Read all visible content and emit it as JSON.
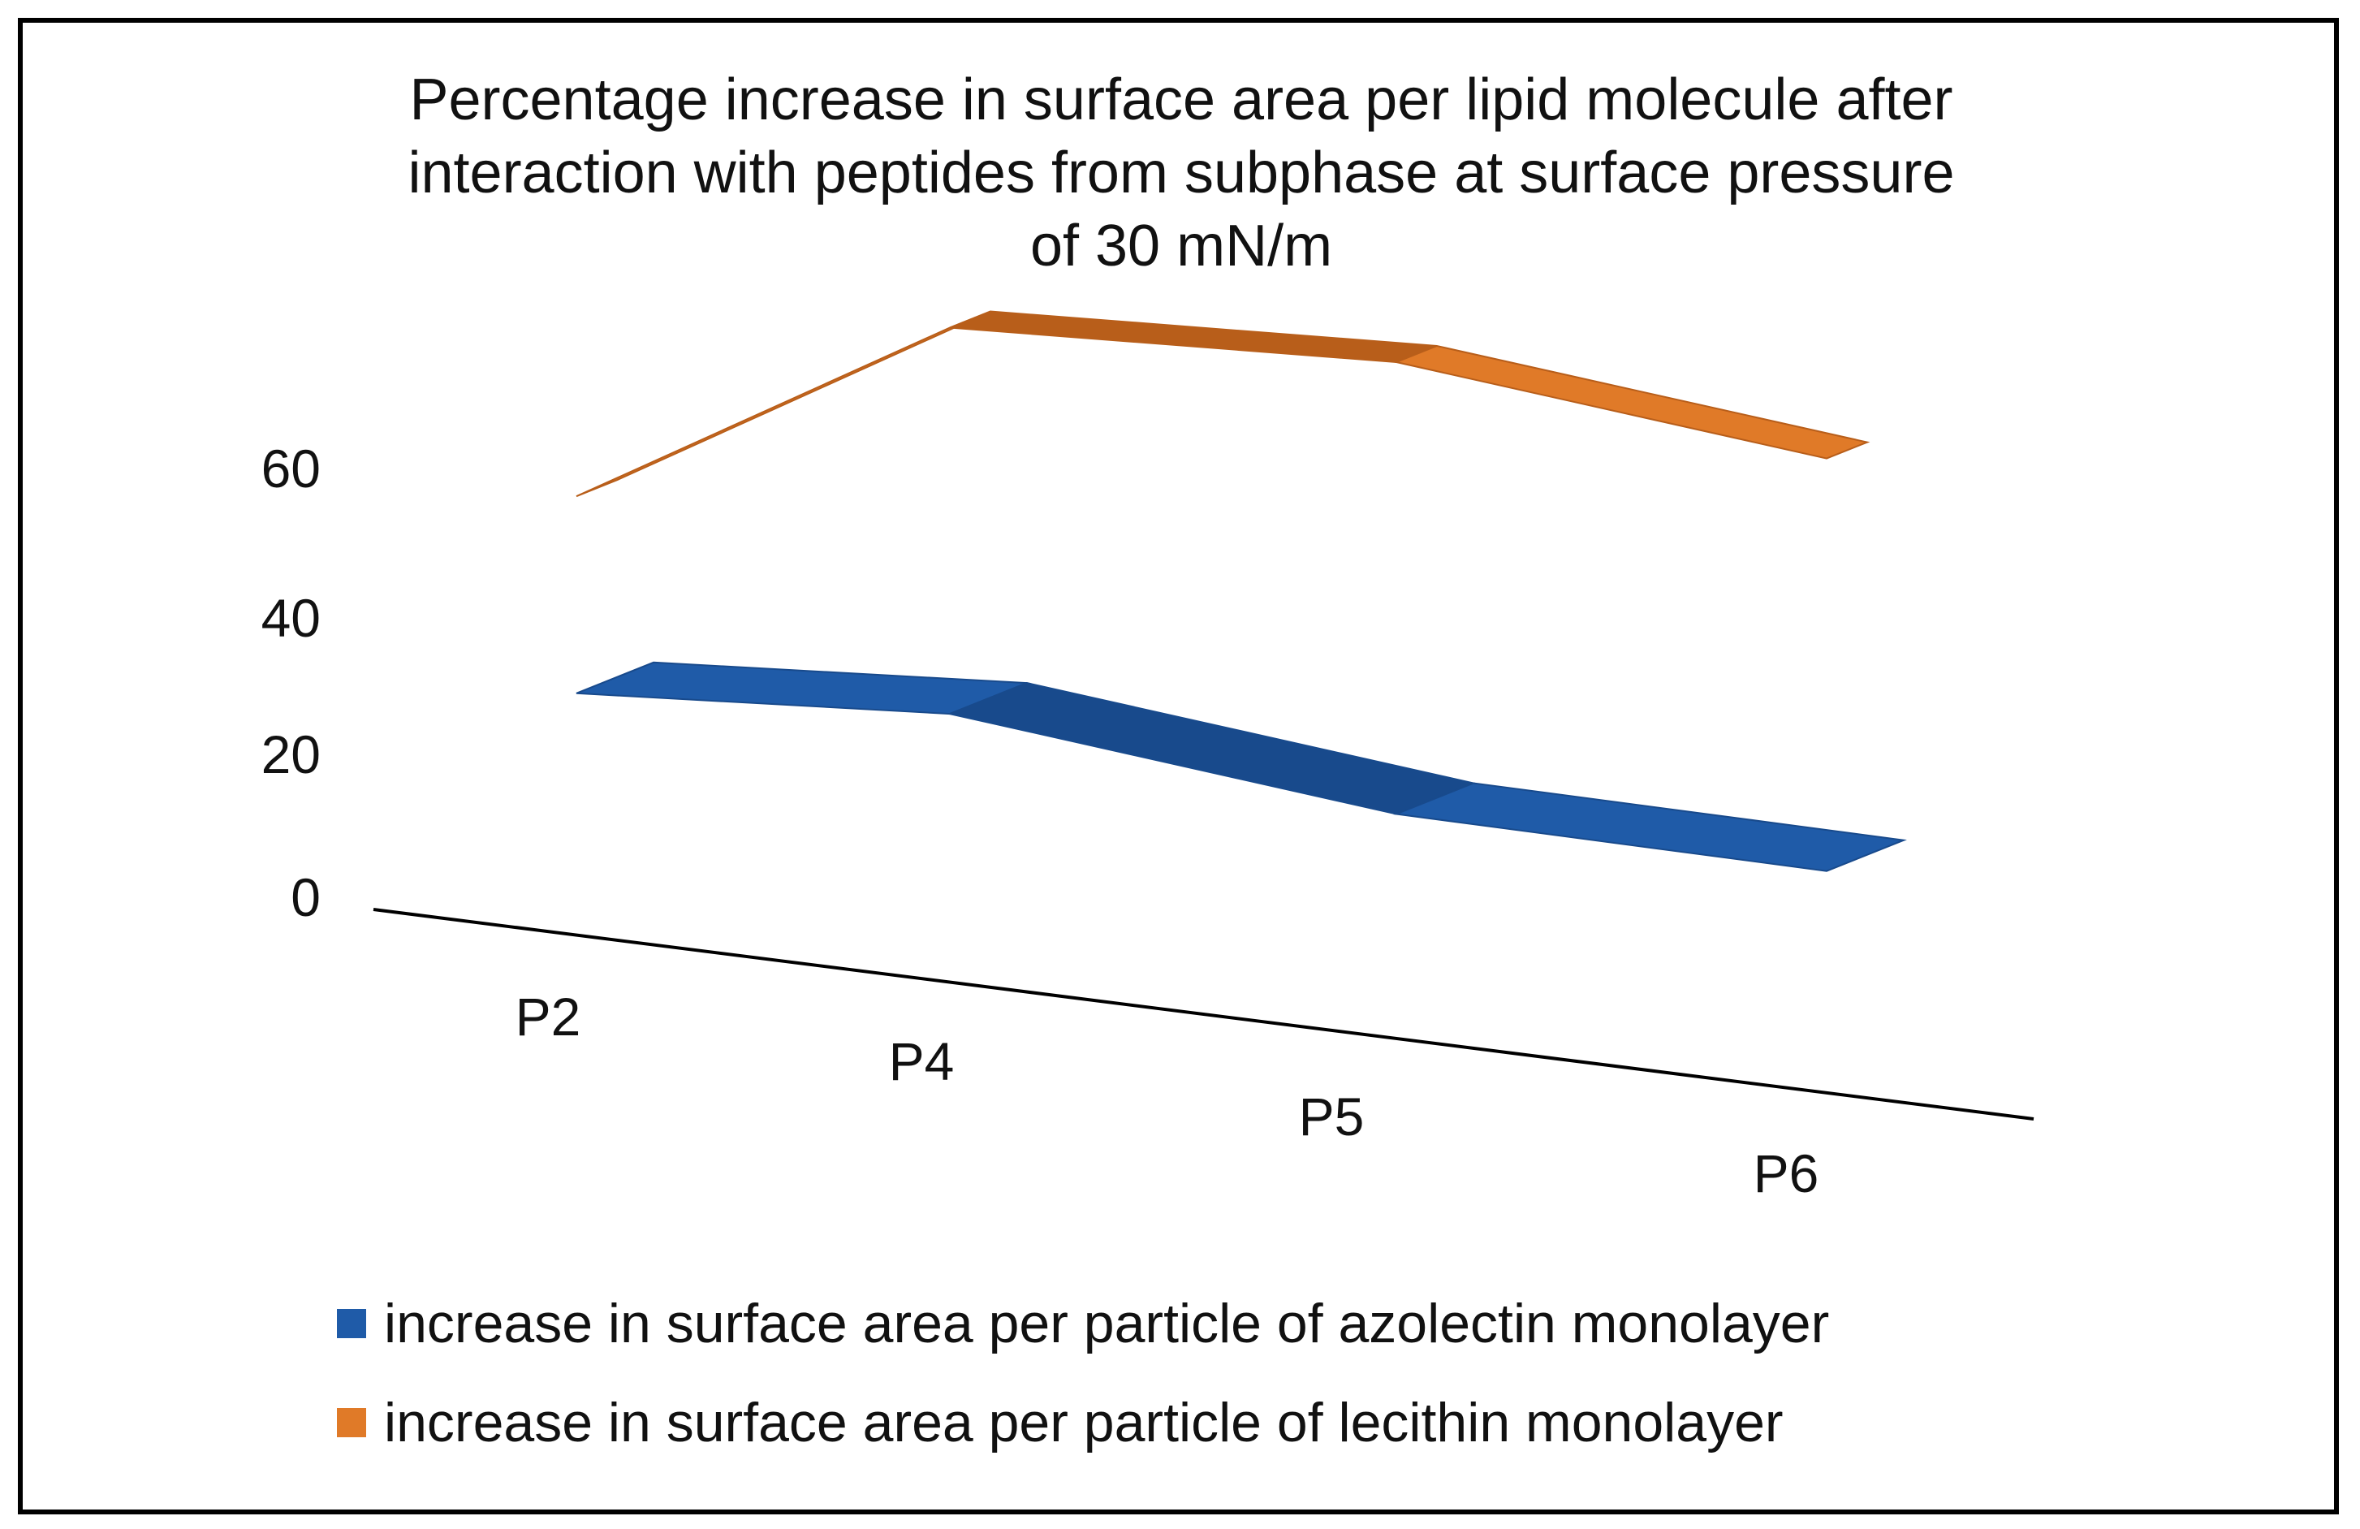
{
  "chart_data": {
    "type": "line",
    "style": "3d-ribbon",
    "title": "Percentage increase in surface area per lipid molecule after\ninteraction with peptides from subphase at surface pressure\nof 30 mN/m",
    "categories": [
      "P2",
      "P4",
      "P5",
      "P6"
    ],
    "y_ticks": [
      "0",
      "20",
      "40",
      "60"
    ],
    "ylim": [
      0,
      60
    ],
    "xlabel": "",
    "ylabel": "",
    "grid": false,
    "legend_position": "bottom",
    "series": [
      {
        "name": "increase in surface area per particle of azolectin monolayer",
        "color": "#1F5BA8",
        "values": [
          14,
          17,
          11,
          10
        ]
      },
      {
        "name": "increase in surface area per particle of lecithin monolayer",
        "color": "#E07A28",
        "values": [
          39,
          66,
          68,
          62
        ]
      }
    ]
  }
}
